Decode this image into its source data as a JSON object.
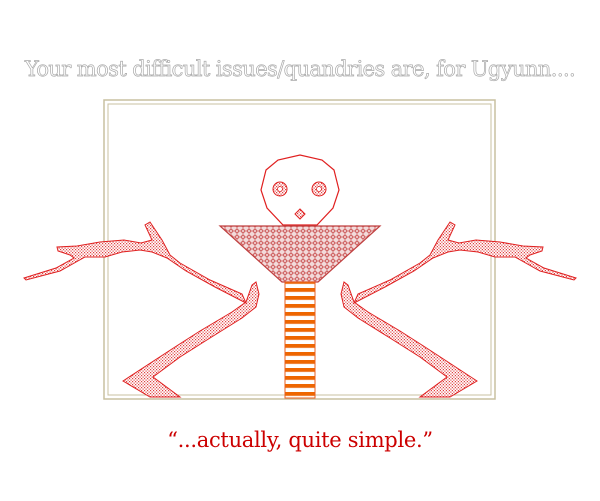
{
  "title": "Your most difficult issues/quandries are, for Ugyunn....",
  "caption": "“...actually, quite simple.”",
  "colors": {
    "title_fill": "#ffffff",
    "title_outline": "#aaaaaa",
    "caption": "#cc0000",
    "line_red": "#e02020",
    "frame": "#c8c0a0",
    "stripes": "#ee6600"
  },
  "icons": [
    "skull-face-icon",
    "branching-arm-icon",
    "bowl-body-icon",
    "striped-pillar-icon"
  ]
}
